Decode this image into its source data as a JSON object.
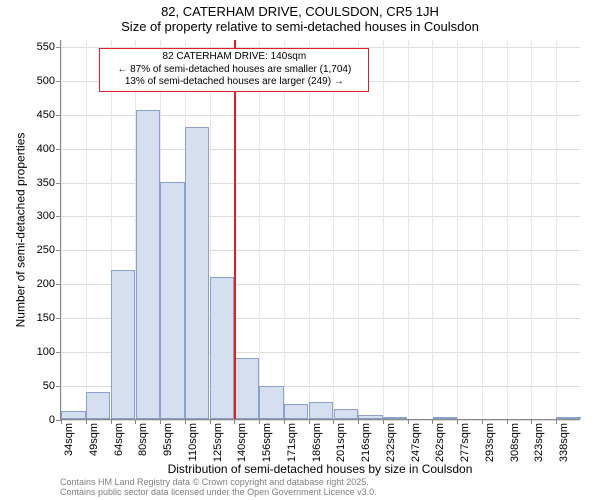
{
  "title_main": "82, CATERHAM DRIVE, COULSDON, CR5 1JH",
  "title_sub": "Size of property relative to semi-detached houses in Coulsdon",
  "ylabel": "Number of semi-detached properties",
  "xlabel": "Distribution of semi-detached houses by size in Coulsdon",
  "footer_line1": "Contains HM Land Registry data © Crown copyright and database right 2025.",
  "footer_line2": "Contains public sector data licensed under the Open Government Licence v3.0.",
  "annotation": {
    "line1": "82 CATERHAM DRIVE: 140sqm",
    "line2": "← 87% of semi-detached houses are smaller (1,704)",
    "line3": "13% of semi-detached houses are larger (249) →"
  },
  "chart": {
    "type": "histogram",
    "background_color": "#ffffff",
    "grid_color": "#dcdcdc",
    "axis_color": "#888888",
    "bar_fill": "#d5dff0",
    "bar_stroke": "#8ca0cc",
    "marker_color": "#e21f26",
    "annotation_border": "#e21f26",
    "ylim": [
      0,
      560
    ],
    "yticks": [
      0,
      50,
      100,
      150,
      200,
      250,
      300,
      350,
      400,
      450,
      500,
      550
    ],
    "xtick_labels": [
      "34sqm",
      "49sqm",
      "64sqm",
      "80sqm",
      "95sqm",
      "110sqm",
      "125sqm",
      "140sqm",
      "156sqm",
      "171sqm",
      "186sqm",
      "201sqm",
      "216sqm",
      "232sqm",
      "247sqm",
      "262sqm",
      "277sqm",
      "293sqm",
      "308sqm",
      "323sqm",
      "338sqm"
    ],
    "marker_x_index": 7,
    "bars": [
      {
        "value": 12
      },
      {
        "value": 40
      },
      {
        "value": 220
      },
      {
        "value": 455
      },
      {
        "value": 350
      },
      {
        "value": 430
      },
      {
        "value": 210
      },
      {
        "value": 90
      },
      {
        "value": 48
      },
      {
        "value": 22
      },
      {
        "value": 25
      },
      {
        "value": 15
      },
      {
        "value": 6
      },
      {
        "value": 2
      },
      {
        "value": 0
      },
      {
        "value": 2
      },
      {
        "value": 0
      },
      {
        "value": 0
      },
      {
        "value": 0
      },
      {
        "value": 0
      },
      {
        "value": 2
      }
    ],
    "title_fontsize": 13,
    "label_fontsize": 12,
    "tick_fontsize": 11,
    "annotation_fontsize": 10,
    "footer_fontsize": 9,
    "footer_color": "#808080"
  }
}
